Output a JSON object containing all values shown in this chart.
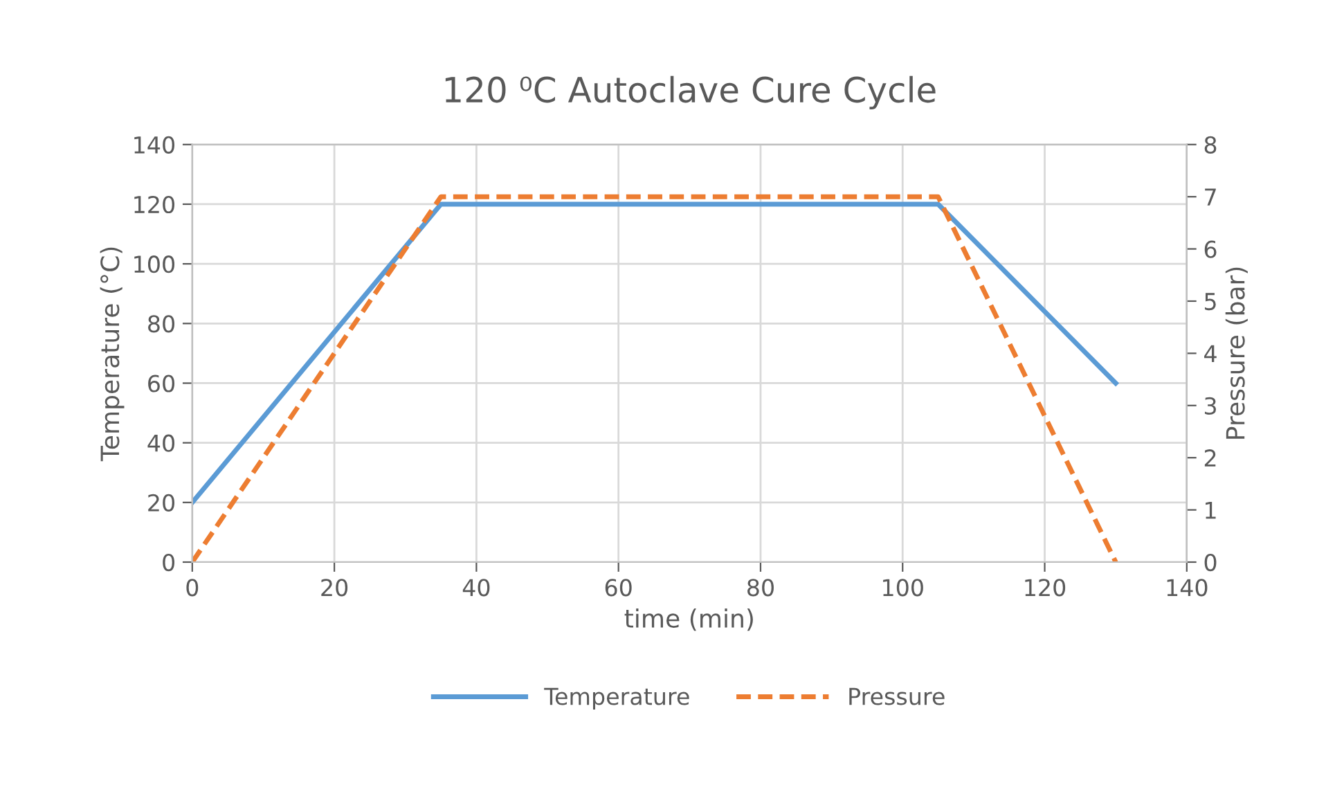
{
  "chart_data": {
    "type": "line",
    "title": "120 ⁰C Autoclave Cure Cycle",
    "xlabel": "time (min)",
    "ylabel": "Temperature (°C)",
    "y2label": "Pressure (bar)",
    "xlim": [
      0,
      140
    ],
    "xticks": [
      0,
      20,
      40,
      60,
      80,
      100,
      120,
      140
    ],
    "ylim": [
      0,
      140
    ],
    "yticks": [
      0,
      20,
      40,
      60,
      80,
      100,
      120,
      140
    ],
    "y2lim": [
      0,
      8
    ],
    "y2ticks": [
      0,
      1,
      2,
      3,
      4,
      5,
      6,
      7,
      8
    ],
    "grid": true,
    "legend": "bottom",
    "series": [
      {
        "name": "Temperature",
        "color": "#5b9bd5",
        "x": [
          0,
          35,
          105,
          130
        ],
        "values": [
          20,
          120,
          120,
          60
        ],
        "line_style": "solid"
      },
      {
        "name": "Pressure",
        "color": "#ed7d31",
        "x": [
          0,
          35,
          105,
          130
        ],
        "values": [
          0,
          7,
          7,
          0
        ],
        "line_style": "dashed",
        "axis": "y2"
      }
    ]
  }
}
